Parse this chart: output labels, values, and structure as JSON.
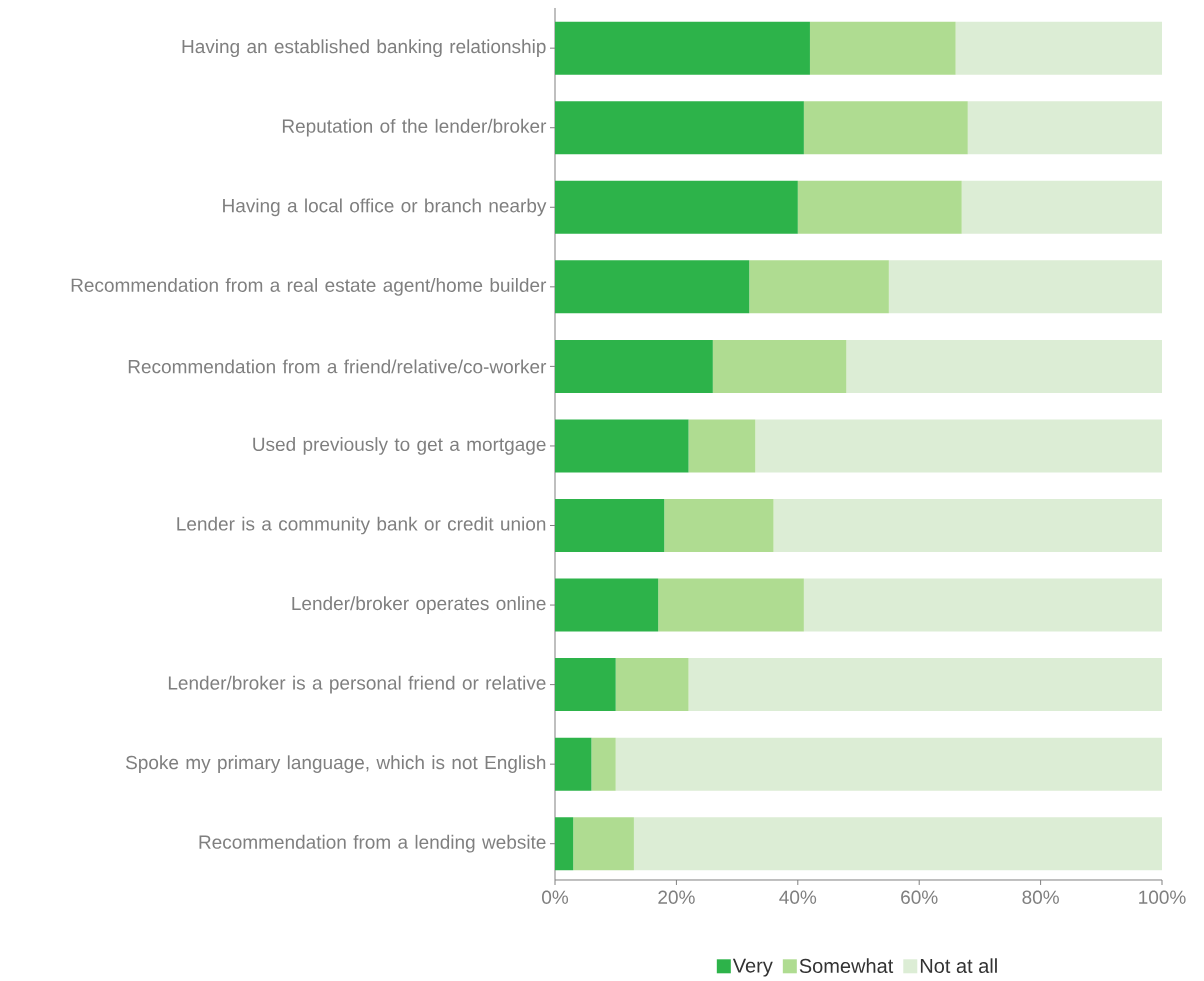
{
  "chart_data": {
    "type": "bar",
    "orientation": "horizontal",
    "stacked": true,
    "categories": [
      "Having an established banking relationship",
      "Reputation of the lender/broker",
      "Having a local office or branch nearby",
      "Recommendation from a real estate agent/home builder",
      "Recommendation from a friend/relative/co-worker",
      "Used previously to get a mortgage",
      "Lender is a community bank or credit union",
      "Lender/broker operates online",
      "Lender/broker is a personal friend or relative",
      "Spoke my primary language, which is not English",
      "Recommendation from a lending website"
    ],
    "series": [
      {
        "name": "Very",
        "color": "#2db34a",
        "values": [
          42,
          41,
          40,
          32,
          26,
          22,
          18,
          17,
          10,
          6,
          3
        ]
      },
      {
        "name": "Somewhat",
        "color": "#afdc91",
        "values": [
          24,
          27,
          27,
          23,
          22,
          11,
          18,
          24,
          12,
          4,
          10
        ]
      },
      {
        "name": "Not at all",
        "color": "#dcedd5",
        "values": [
          34,
          32,
          33,
          45,
          52,
          67,
          64,
          59,
          78,
          90,
          87
        ]
      }
    ],
    "xlim": [
      0,
      100
    ],
    "xticks": [
      {
        "value": 0,
        "label": "0%"
      },
      {
        "value": 20,
        "label": "20%"
      },
      {
        "value": 40,
        "label": "40%"
      },
      {
        "value": 60,
        "label": "60%"
      },
      {
        "value": 80,
        "label": "80%"
      },
      {
        "value": 100,
        "label": "100%"
      }
    ],
    "legend": "bottom"
  }
}
